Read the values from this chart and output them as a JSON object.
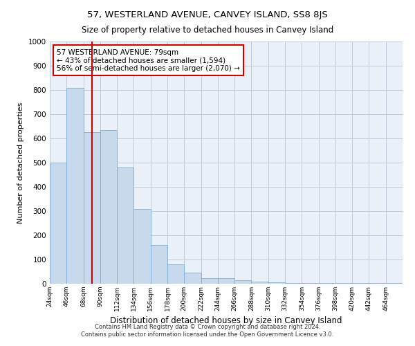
{
  "title": "57, WESTERLAND AVENUE, CANVEY ISLAND, SS8 8JS",
  "subtitle": "Size of property relative to detached houses in Canvey Island",
  "xlabel": "Distribution of detached houses by size in Canvey Island",
  "ylabel": "Number of detached properties",
  "footer_line1": "Contains HM Land Registry data © Crown copyright and database right 2024.",
  "footer_line2": "Contains public sector information licensed under the Open Government Licence v3.0.",
  "property_size": 79,
  "annotation_line1": "57 WESTERLAND AVENUE: 79sqm",
  "annotation_line2": "← 43% of detached houses are smaller (1,594)",
  "annotation_line3": "56% of semi-detached houses are larger (2,070) →",
  "bar_color": "#c9d9ed",
  "bar_edge_color": "#7bafd4",
  "vline_color": "#cc0000",
  "grid_color": "#c0c8d8",
  "background_color": "#eaf0f8",
  "categories": [
    "24sqm",
    "46sqm",
    "68sqm",
    "90sqm",
    "112sqm",
    "134sqm",
    "156sqm",
    "178sqm",
    "200sqm",
    "222sqm",
    "244sqm",
    "266sqm",
    "288sqm",
    "310sqm",
    "332sqm",
    "354sqm",
    "376sqm",
    "398sqm",
    "420sqm",
    "442sqm",
    "464sqm"
  ],
  "values": [
    500,
    810,
    625,
    635,
    480,
    310,
    160,
    80,
    45,
    22,
    22,
    15,
    10,
    5,
    3,
    3,
    2,
    2,
    2,
    2,
    2
  ],
  "bin_width": 22,
  "bin_starts": [
    24,
    46,
    68,
    90,
    112,
    134,
    156,
    178,
    200,
    222,
    244,
    266,
    288,
    310,
    332,
    354,
    376,
    398,
    420,
    442,
    464
  ],
  "ylim": [
    0,
    1000
  ],
  "yticks": [
    0,
    100,
    200,
    300,
    400,
    500,
    600,
    700,
    800,
    900,
    1000
  ]
}
